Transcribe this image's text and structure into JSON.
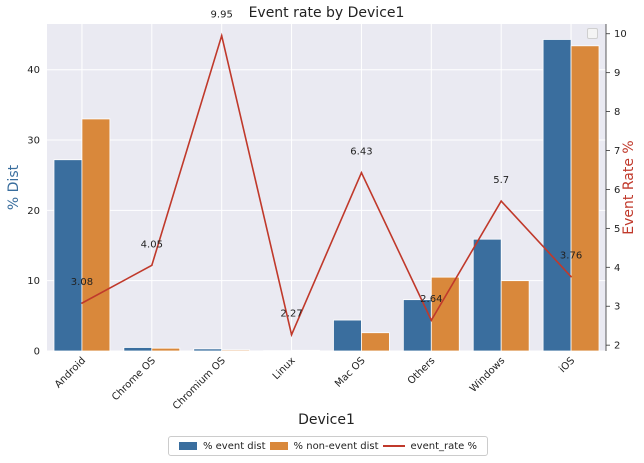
{
  "chart_data": {
    "type": "bar",
    "title": "Event rate by Device1",
    "xlabel": "Device1",
    "ylabel": "% Dist",
    "y2label": "Event Rate %",
    "categories": [
      "Android",
      "Chrome OS",
      "Chromium OS",
      "Linux",
      "Mac OS",
      "Others",
      "Windows",
      "iOS"
    ],
    "series": [
      {
        "name": "% event dist",
        "kind": "bar",
        "axis": "left",
        "color": "#3a6e9e",
        "values": [
          27.2,
          0.5,
          0.3,
          0.05,
          4.4,
          7.3,
          15.9,
          44.3
        ]
      },
      {
        "name": "% non-event dist",
        "kind": "bar",
        "axis": "left",
        "color": "#d9883b",
        "values": [
          33.0,
          0.4,
          0.15,
          0.1,
          2.6,
          10.5,
          10.0,
          43.4
        ]
      },
      {
        "name": "event_rate %",
        "kind": "line",
        "axis": "right",
        "color": "#c0392b",
        "values": [
          3.08,
          4.05,
          9.95,
          2.27,
          6.43,
          2.64,
          5.7,
          3.76
        ]
      }
    ],
    "data_labels": [
      "3.08",
      "4.05",
      "9.95",
      "2.27",
      "6.43",
      "2.64",
      "5.7",
      "3.76"
    ],
    "y_ticks": [
      "0",
      "10",
      "20",
      "30",
      "40"
    ],
    "y2_ticks": [
      "2",
      "3",
      "4",
      "5",
      "6",
      "7",
      "8",
      "9",
      "10"
    ],
    "ylim": [
      0,
      46.5
    ],
    "y2lim": [
      1.85,
      10.25
    ],
    "grid": true,
    "legend_position": "bottom-center"
  }
}
